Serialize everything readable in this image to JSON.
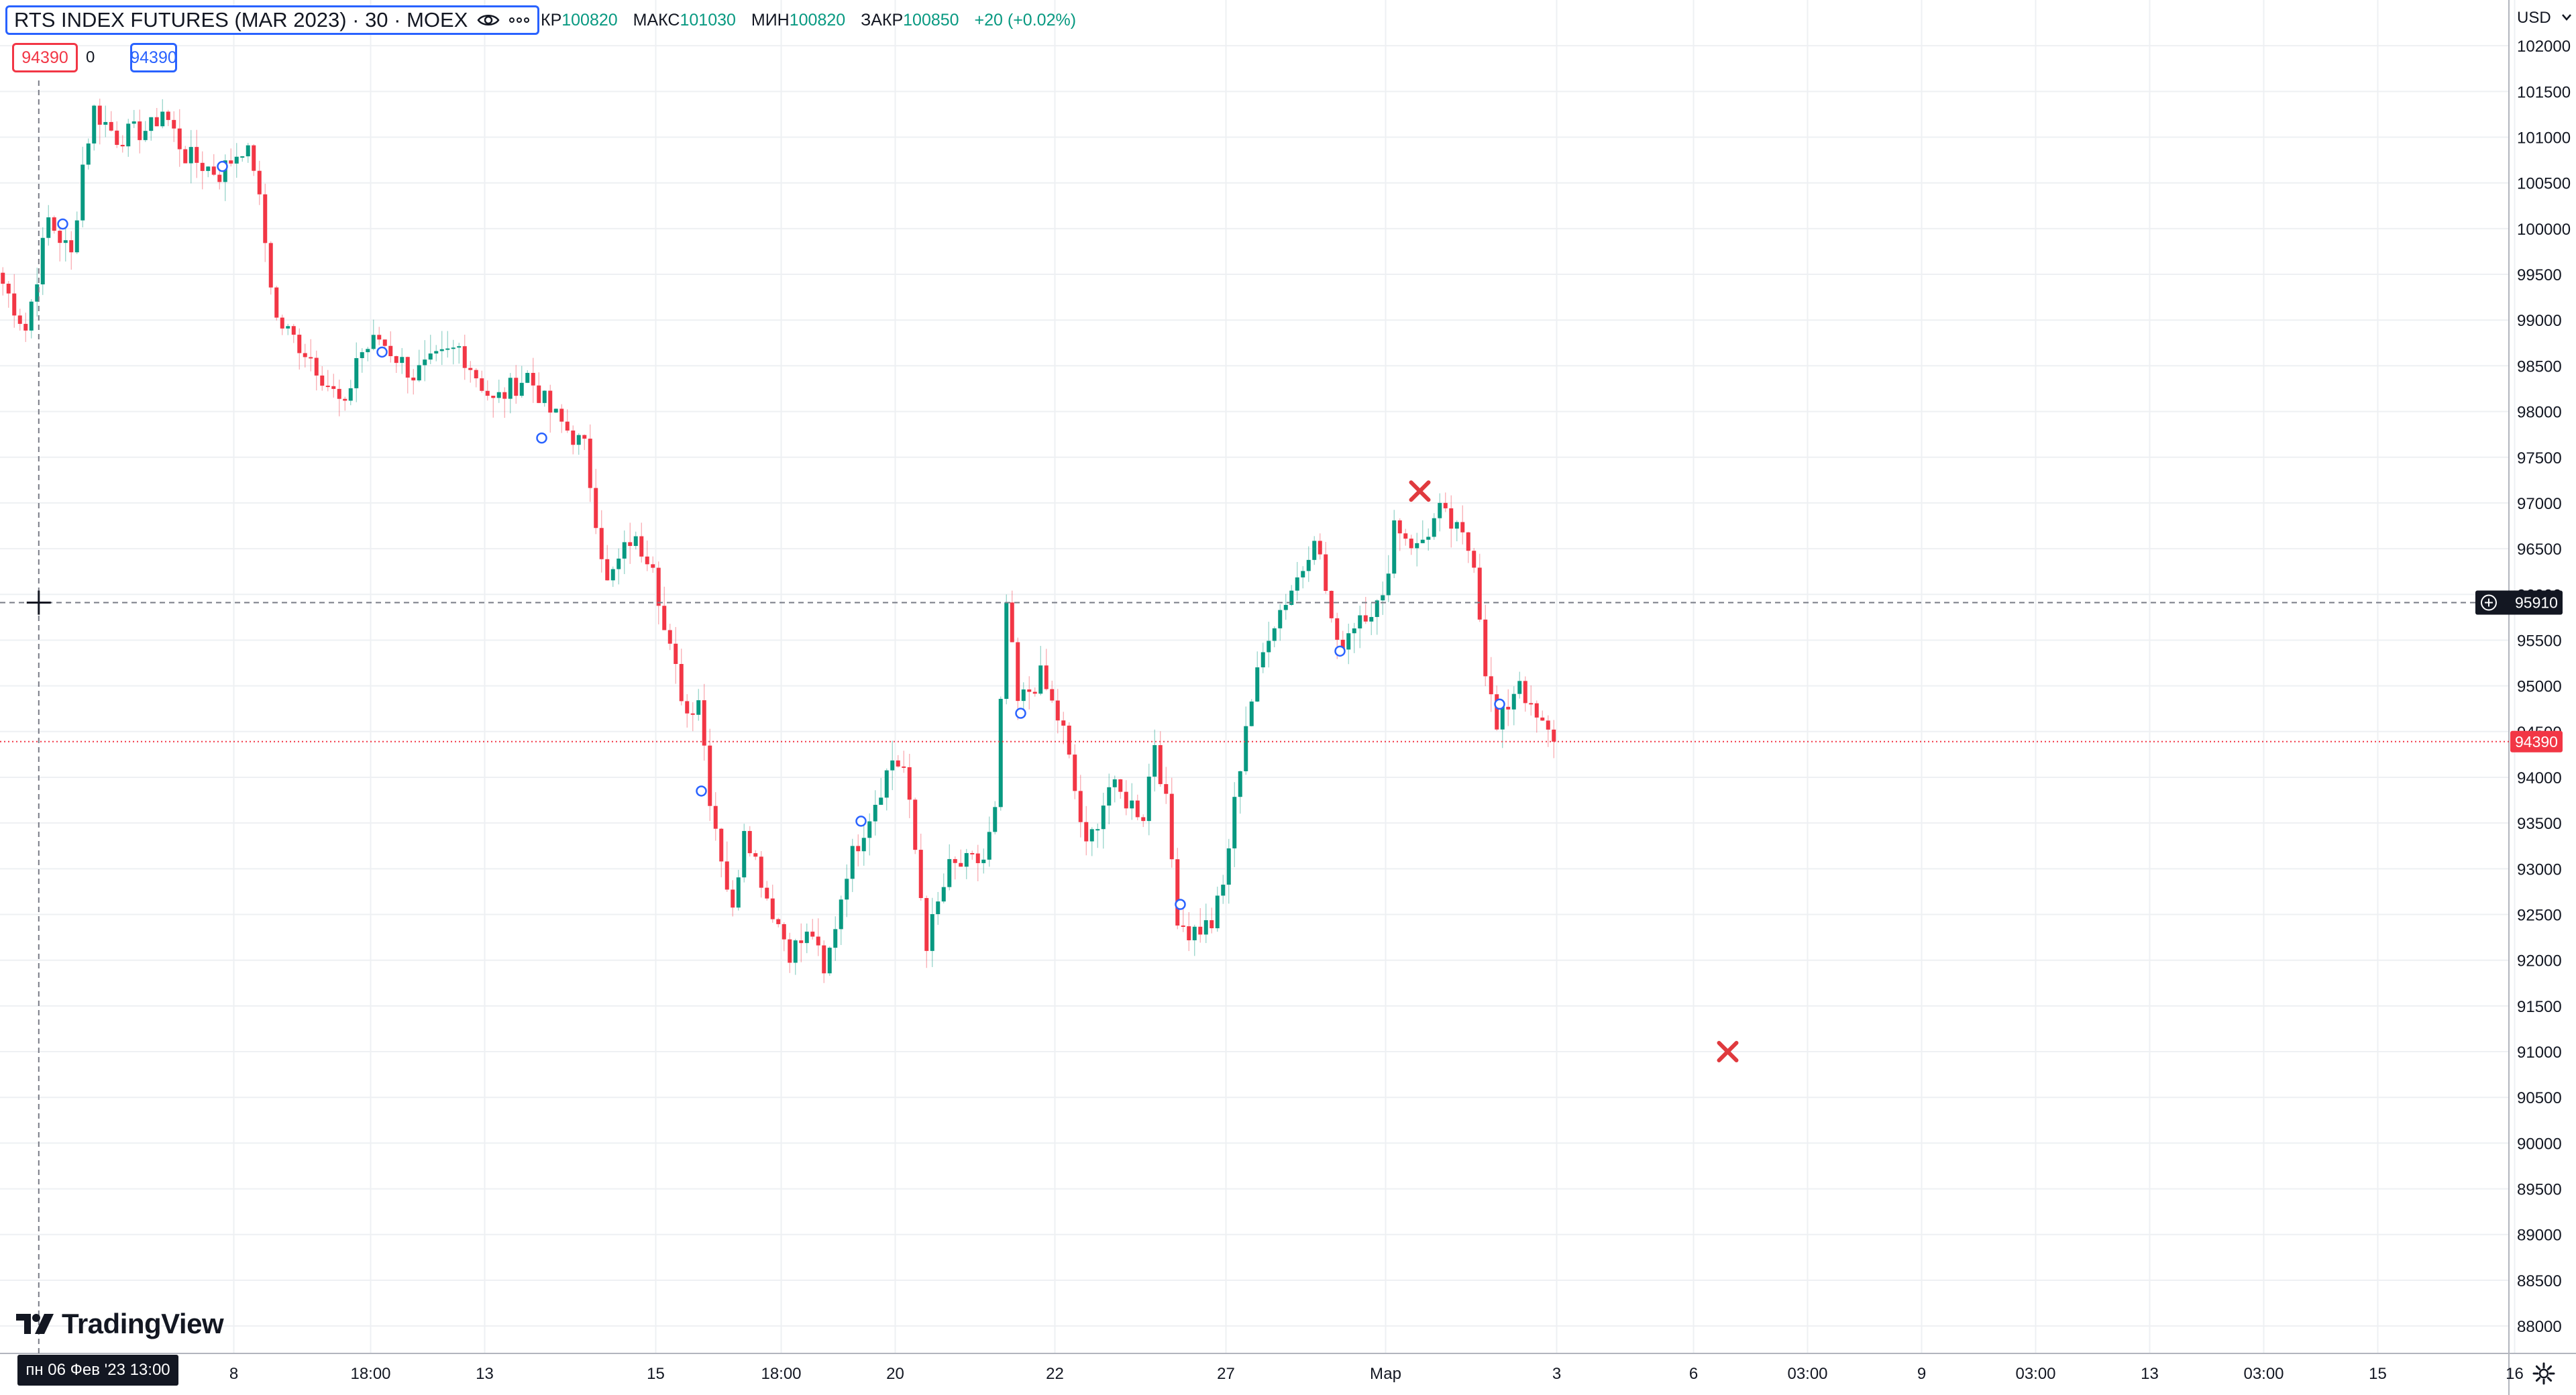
{
  "legend": {
    "title": "RTS INDEX FUTURES (MAR 2023) · 30 · MOEX",
    "ohlc": [
      {
        "k": "КР",
        "v": "100820"
      },
      {
        "k": "МАКС",
        "v": "101030"
      },
      {
        "k": "МИН",
        "v": "100820"
      },
      {
        "k": "ЗАКР",
        "v": "100850"
      }
    ],
    "change": "+20 (+0.02%)",
    "sell_price": "94390",
    "spread": "0",
    "buy_price": "94390"
  },
  "currency": "USD",
  "crosshair_price": "95910",
  "last_price": "94390",
  "crosshair_date": "пн 06 Фев '23   13:00",
  "logo_text": "TradingView",
  "icons": [
    "eye-icon",
    "more-icon",
    "plus-circle-icon",
    "gear-icon",
    "tradingview-logo-icon",
    "chevron-down-icon"
  ],
  "colors": {
    "up": "#089981",
    "down": "#f23645",
    "accent": "#2962ff",
    "marker": "#e03a3e"
  },
  "chart_data": {
    "type": "candlestick",
    "y_ticks": [
      88000,
      88500,
      89000,
      89500,
      90000,
      90500,
      91000,
      91500,
      92000,
      92500,
      93000,
      93500,
      94000,
      94500,
      95000,
      95500,
      96000,
      96500,
      97000,
      97500,
      98000,
      98500,
      99000,
      99500,
      100000,
      100500,
      101000,
      101500,
      102000
    ],
    "ylim": [
      87700,
      102500
    ],
    "x_ticks": [
      {
        "i": 20,
        "label": "8"
      },
      {
        "i": 32,
        "label": "18:00"
      },
      {
        "i": 42,
        "label": "13"
      },
      {
        "i": 57,
        "label": "15"
      },
      {
        "i": 68,
        "label": "18:00"
      },
      {
        "i": 78,
        "label": "20"
      },
      {
        "i": 92,
        "label": "22"
      },
      {
        "i": 107,
        "label": "27"
      },
      {
        "i": 121,
        "label": "Мар"
      },
      {
        "i": 136,
        "label": "3"
      },
      {
        "i": 148,
        "label": "6"
      },
      {
        "i": 158,
        "label": "03:00"
      },
      {
        "i": 168,
        "label": "9"
      },
      {
        "i": 178,
        "label": "03:00"
      },
      {
        "i": 188,
        "label": "13"
      },
      {
        "i": 198,
        "label": "03:00"
      },
      {
        "i": 208,
        "label": "15"
      },
      {
        "i": 220,
        "label": "16"
      }
    ],
    "anchors": [
      [
        0,
        99400
      ],
      [
        2,
        98900
      ],
      [
        4,
        100100
      ],
      [
        6,
        99700
      ],
      [
        7,
        100700
      ],
      [
        8,
        101300
      ],
      [
        10,
        101000
      ],
      [
        13,
        101100
      ],
      [
        14,
        101300
      ],
      [
        16,
        100800
      ],
      [
        19,
        100600
      ],
      [
        21,
        100900
      ],
      [
        22,
        100700
      ],
      [
        24,
        99000
      ],
      [
        27,
        98600
      ],
      [
        30,
        98000
      ],
      [
        31,
        98600
      ],
      [
        33,
        98800
      ],
      [
        36,
        98400
      ],
      [
        40,
        98700
      ],
      [
        43,
        98100
      ],
      [
        46,
        98400
      ],
      [
        48,
        98000
      ],
      [
        51,
        97600
      ],
      [
        53,
        96100
      ],
      [
        55,
        96600
      ],
      [
        57,
        96400
      ],
      [
        58,
        95600
      ],
      [
        60,
        94700
      ],
      [
        61,
        94900
      ],
      [
        62,
        93800
      ],
      [
        64,
        92500
      ],
      [
        65,
        93500
      ],
      [
        67,
        92700
      ],
      [
        69,
        92100
      ],
      [
        71,
        92300
      ],
      [
        72,
        91800
      ],
      [
        74,
        93000
      ],
      [
        76,
        93600
      ],
      [
        78,
        94200
      ],
      [
        79,
        94100
      ],
      [
        80,
        93200
      ],
      [
        81,
        92200
      ],
      [
        83,
        93000
      ],
      [
        86,
        93100
      ],
      [
        87,
        93600
      ],
      [
        88,
        95900
      ],
      [
        89,
        94800
      ],
      [
        91,
        95100
      ],
      [
        92,
        94800
      ],
      [
        93,
        94500
      ],
      [
        95,
        93200
      ],
      [
        97,
        93900
      ],
      [
        100,
        93600
      ],
      [
        101,
        94400
      ],
      [
        102,
        93700
      ],
      [
        103,
        92500
      ],
      [
        104,
        92300
      ],
      [
        106,
        92400
      ],
      [
        107,
        92800
      ],
      [
        109,
        94600
      ],
      [
        111,
        95600
      ],
      [
        114,
        96300
      ],
      [
        115,
        96700
      ],
      [
        117,
        95400
      ],
      [
        119,
        95800
      ],
      [
        121,
        95900
      ],
      [
        122,
        96800
      ],
      [
        124,
        96500
      ],
      [
        126,
        96900
      ],
      [
        128,
        96600
      ],
      [
        129,
        96400
      ],
      [
        130,
        95200
      ],
      [
        131,
        94500
      ],
      [
        133,
        95100
      ],
      [
        134,
        94700
      ],
      [
        136,
        94390
      ]
    ],
    "markers": [
      {
        "type": "cross",
        "i": 124,
        "y": 97130
      },
      {
        "type": "cross",
        "i": 151,
        "y": 91000
      }
    ],
    "circles": [
      {
        "i": 5,
        "y": 100050
      },
      {
        "i": 19,
        "y": 100680
      },
      {
        "i": 33,
        "y": 98650
      },
      {
        "i": 47,
        "y": 97710
      },
      {
        "i": 61,
        "y": 93850
      },
      {
        "i": 75,
        "y": 93520
      },
      {
        "i": 89,
        "y": 94700
      },
      {
        "i": 103,
        "y": 92610
      },
      {
        "i": 117,
        "y": 95380
      },
      {
        "i": 131,
        "y": 94800
      }
    ]
  }
}
